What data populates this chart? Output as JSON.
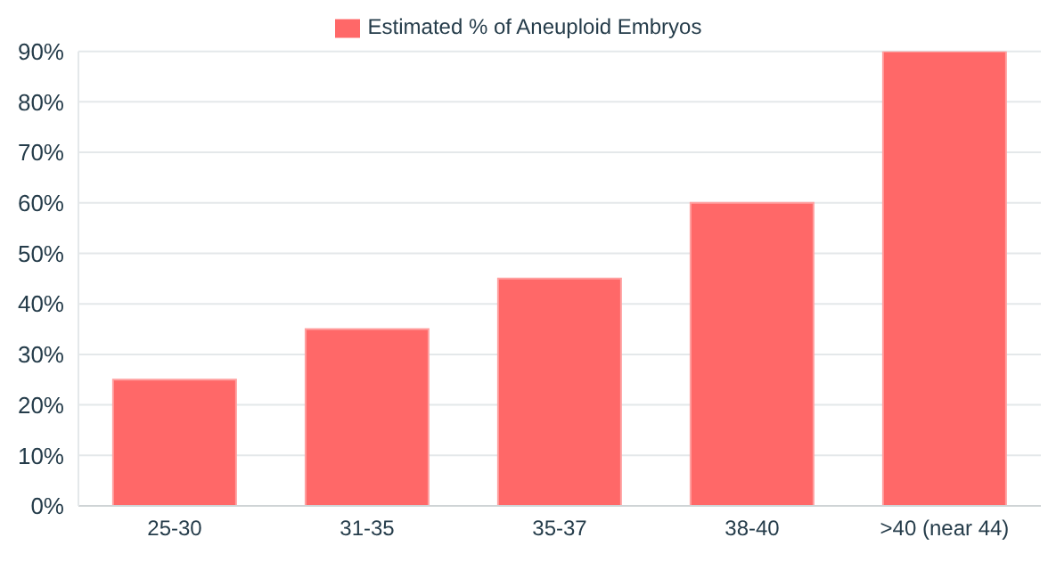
{
  "chart_data": {
    "type": "bar",
    "categories": [
      "25-30",
      "31-35",
      "35-37",
      "38-40",
      ">40 (near 44)"
    ],
    "series": [
      {
        "name": "Estimated % of Aneuploid Embryos",
        "color": "#ff6868",
        "values": [
          25,
          35,
          45,
          60,
          90
        ]
      }
    ],
    "ylim": [
      0,
      90
    ],
    "yticks": [
      {
        "value": 0,
        "label": "0%"
      },
      {
        "value": 10,
        "label": "10%"
      },
      {
        "value": 20,
        "label": "20%"
      },
      {
        "value": 30,
        "label": "30%"
      },
      {
        "value": 40,
        "label": "40%"
      },
      {
        "value": 50,
        "label": "50%"
      },
      {
        "value": 60,
        "label": "60%"
      },
      {
        "value": 70,
        "label": "70%"
      },
      {
        "value": 80,
        "label": "80%"
      },
      {
        "value": 90,
        "label": "90%"
      }
    ],
    "grid": "y",
    "legend": "top"
  }
}
